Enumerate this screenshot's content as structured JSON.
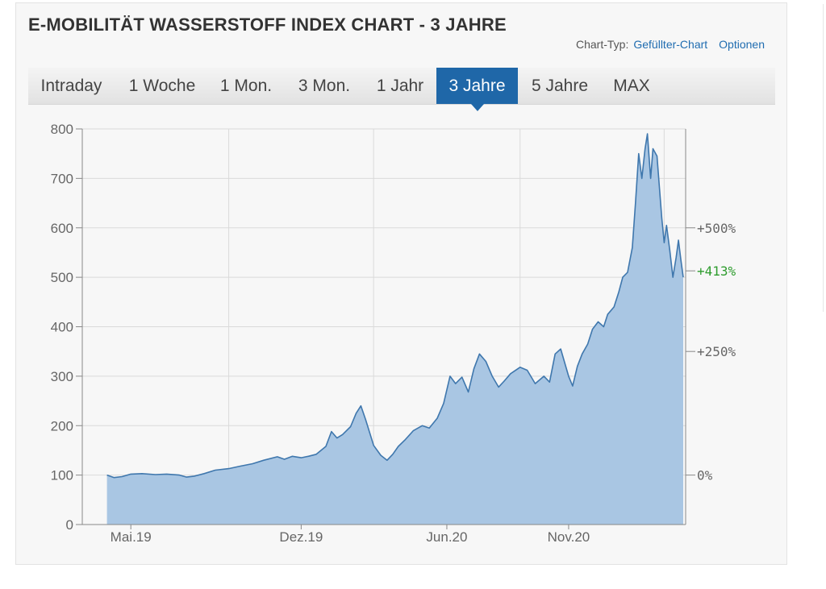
{
  "header": {
    "title": "E-MOBILITÄT WASSERSTOFF INDEX CHART - 3 JAHRE",
    "chart_type_label": "Chart-Typ:",
    "chart_type_value": "Gefüllter-Chart",
    "options_label": "Optionen"
  },
  "tabs": [
    {
      "label": "Intraday",
      "active": false
    },
    {
      "label": "1 Woche",
      "active": false
    },
    {
      "label": "1 Mon.",
      "active": false
    },
    {
      "label": "3 Mon.",
      "active": false
    },
    {
      "label": "1 Jahr",
      "active": false
    },
    {
      "label": "3 Jahre",
      "active": true
    },
    {
      "label": "5 Jahre",
      "active": false
    },
    {
      "label": "MAX",
      "active": false
    }
  ],
  "colors": {
    "accent": "#1f67a8",
    "area_fill": "#a9c6e3",
    "line": "#3f77ad",
    "highlight": "#2e9c2e"
  },
  "chart_data": {
    "type": "area",
    "title": "E-MOBILITÄT WASSERSTOFF INDEX CHART - 3 JAHRE",
    "xlabel": "",
    "ylabel": "",
    "ylim": [
      0,
      800
    ],
    "yticks": [
      0,
      100,
      200,
      300,
      400,
      500,
      600,
      700,
      800
    ],
    "xticks": [
      {
        "label": "Mai.19",
        "x": "2019-05-01"
      },
      {
        "label": "Dez.19",
        "x": "2019-12-01"
      },
      {
        "label": "Jun.20",
        "x": "2020-06-01"
      },
      {
        "label": "Nov.20",
        "x": "2020-11-01"
      }
    ],
    "right_axis": [
      {
        "label": "+500%",
        "y": 600
      },
      {
        "label": "+413%",
        "y": 513,
        "highlight": true
      },
      {
        "label": "+250%",
        "y": 350
      },
      {
        "label": "0%",
        "y": 100
      }
    ],
    "grid": true,
    "series": [
      {
        "values": [
          [
            "2019-04-01",
            100
          ],
          [
            "2019-04-10",
            95
          ],
          [
            "2019-04-20",
            97
          ],
          [
            "2019-05-01",
            102
          ],
          [
            "2019-05-15",
            103
          ],
          [
            "2019-06-01",
            101
          ],
          [
            "2019-06-15",
            102
          ],
          [
            "2019-07-01",
            100
          ],
          [
            "2019-07-10",
            96
          ],
          [
            "2019-07-20",
            98
          ],
          [
            "2019-08-01",
            103
          ],
          [
            "2019-08-15",
            110
          ],
          [
            "2019-09-01",
            113
          ],
          [
            "2019-09-15",
            118
          ],
          [
            "2019-10-01",
            123
          ],
          [
            "2019-10-15",
            130
          ],
          [
            "2019-11-01",
            137
          ],
          [
            "2019-11-10",
            132
          ],
          [
            "2019-11-20",
            138
          ],
          [
            "2019-12-01",
            135
          ],
          [
            "2019-12-10",
            138
          ],
          [
            "2019-12-20",
            142
          ],
          [
            "2020-01-01",
            158
          ],
          [
            "2020-01-08",
            188
          ],
          [
            "2020-01-15",
            175
          ],
          [
            "2020-01-22",
            182
          ],
          [
            "2020-02-01",
            198
          ],
          [
            "2020-02-08",
            225
          ],
          [
            "2020-02-14",
            240
          ],
          [
            "2020-02-20",
            212
          ],
          [
            "2020-03-01",
            160
          ],
          [
            "2020-03-10",
            140
          ],
          [
            "2020-03-18",
            130
          ],
          [
            "2020-03-25",
            142
          ],
          [
            "2020-04-01",
            158
          ],
          [
            "2020-04-10",
            172
          ],
          [
            "2020-04-20",
            190
          ],
          [
            "2020-05-01",
            200
          ],
          [
            "2020-05-10",
            195
          ],
          [
            "2020-05-20",
            215
          ],
          [
            "2020-05-28",
            245
          ],
          [
            "2020-06-05",
            300
          ],
          [
            "2020-06-12",
            285
          ],
          [
            "2020-06-20",
            298
          ],
          [
            "2020-06-28",
            268
          ],
          [
            "2020-07-05",
            315
          ],
          [
            "2020-07-12",
            345
          ],
          [
            "2020-07-20",
            330
          ],
          [
            "2020-07-28",
            300
          ],
          [
            "2020-08-05",
            278
          ],
          [
            "2020-08-12",
            290
          ],
          [
            "2020-08-20",
            305
          ],
          [
            "2020-09-01",
            318
          ],
          [
            "2020-09-10",
            312
          ],
          [
            "2020-09-20",
            285
          ],
          [
            "2020-10-01",
            300
          ],
          [
            "2020-10-08",
            288
          ],
          [
            "2020-10-15",
            345
          ],
          [
            "2020-10-22",
            355
          ],
          [
            "2020-11-01",
            300
          ],
          [
            "2020-11-06",
            280
          ],
          [
            "2020-11-12",
            320
          ],
          [
            "2020-11-18",
            345
          ],
          [
            "2020-11-25",
            365
          ],
          [
            "2020-12-01",
            395
          ],
          [
            "2020-12-08",
            410
          ],
          [
            "2020-12-15",
            400
          ],
          [
            "2020-12-20",
            425
          ],
          [
            "2020-12-28",
            440
          ],
          [
            "2021-01-03",
            470
          ],
          [
            "2021-01-08",
            500
          ],
          [
            "2021-01-14",
            510
          ],
          [
            "2021-01-20",
            560
          ],
          [
            "2021-01-24",
            650
          ],
          [
            "2021-01-28",
            750
          ],
          [
            "2021-02-01",
            700
          ],
          [
            "2021-02-05",
            760
          ],
          [
            "2021-02-08",
            790
          ],
          [
            "2021-02-12",
            700
          ],
          [
            "2021-02-15",
            760
          ],
          [
            "2021-02-20",
            745
          ],
          [
            "2021-02-26",
            620
          ],
          [
            "2021-03-01",
            570
          ],
          [
            "2021-03-04",
            605
          ],
          [
            "2021-03-08",
            555
          ],
          [
            "2021-03-12",
            500
          ],
          [
            "2021-03-16",
            540
          ],
          [
            "2021-03-19",
            575
          ],
          [
            "2021-03-22",
            535
          ],
          [
            "2021-03-25",
            500
          ]
        ]
      }
    ]
  }
}
